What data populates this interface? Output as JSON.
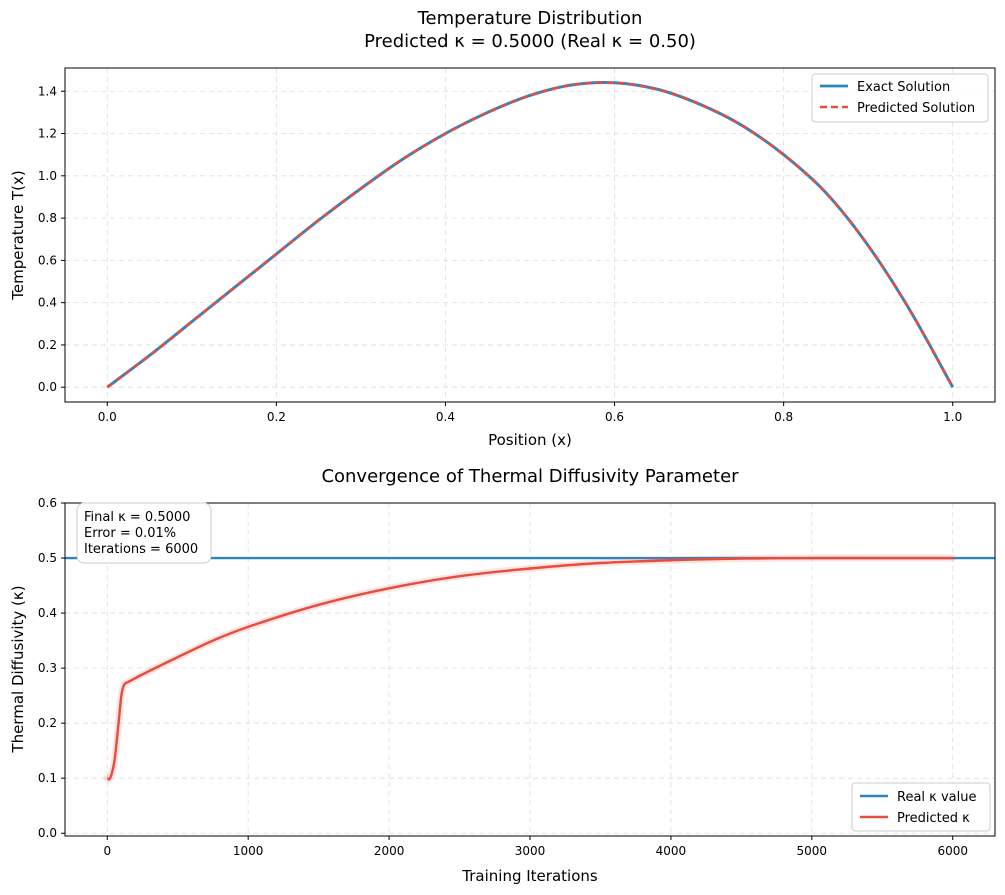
{
  "colors": {
    "exact": "#2e86c1",
    "predicted": "#e74c3c",
    "grid": "#dddddd",
    "axis": "#000000"
  },
  "chart_data": [
    {
      "type": "line",
      "title": "Temperature Distribution\nPredicted κ = 0.5000 (Real κ = 0.50)",
      "title_lines": [
        "Temperature Distribution",
        "Predicted κ = 0.5000 (Real κ = 0.50)"
      ],
      "xlabel": "Position (x)",
      "ylabel": "Temperature T(x)",
      "xlim": [
        -0.05,
        1.05
      ],
      "ylim": [
        -0.07,
        1.51
      ],
      "xticks": [
        0.0,
        0.2,
        0.4,
        0.6,
        0.8,
        1.0
      ],
      "xtick_labels": [
        "0.0",
        "0.2",
        "0.4",
        "0.6",
        "0.8",
        "1.0"
      ],
      "yticks": [
        0.0,
        0.2,
        0.4,
        0.6,
        0.8,
        1.0,
        1.2,
        1.4
      ],
      "ytick_labels": [
        "0.0",
        "0.2",
        "0.4",
        "0.6",
        "0.8",
        "1.0",
        "1.2",
        "1.4"
      ],
      "grid": true,
      "legend": "upper right",
      "series": [
        {
          "name": "Exact Solution",
          "style": "solid",
          "color": "#2e86c1",
          "x": [
            0.0,
            0.05,
            0.1,
            0.15,
            0.2,
            0.25,
            0.3,
            0.35,
            0.4,
            0.45,
            0.5,
            0.55,
            0.6,
            0.65,
            0.7,
            0.75,
            0.8,
            0.85,
            0.9,
            0.95,
            1.0
          ],
          "y": [
            0.0,
            0.15,
            0.31,
            0.47,
            0.63,
            0.79,
            0.94,
            1.08,
            1.2,
            1.3,
            1.38,
            1.43,
            1.44,
            1.41,
            1.34,
            1.24,
            1.1,
            0.92,
            0.67,
            0.36,
            0.0
          ]
        },
        {
          "name": "Predicted Solution",
          "style": "dashed",
          "color": "#e74c3c",
          "x": [
            0.0,
            0.05,
            0.1,
            0.15,
            0.2,
            0.25,
            0.3,
            0.35,
            0.4,
            0.45,
            0.5,
            0.55,
            0.6,
            0.65,
            0.7,
            0.75,
            0.8,
            0.85,
            0.9,
            0.95,
            1.0
          ],
          "y": [
            0.0,
            0.15,
            0.31,
            0.47,
            0.63,
            0.79,
            0.94,
            1.08,
            1.2,
            1.3,
            1.38,
            1.43,
            1.44,
            1.41,
            1.34,
            1.24,
            1.1,
            0.92,
            0.67,
            0.36,
            0.0
          ]
        }
      ]
    },
    {
      "type": "line",
      "title": "Convergence of Thermal Diffusivity Parameter",
      "xlabel": "Training Iterations",
      "ylabel": "Thermal Diffusivity (κ)",
      "xlim": [
        -300,
        6300
      ],
      "ylim": [
        -0.005,
        0.6
      ],
      "xticks": [
        0,
        1000,
        2000,
        3000,
        4000,
        5000,
        6000
      ],
      "xtick_labels": [
        "0",
        "1000",
        "2000",
        "3000",
        "4000",
        "5000",
        "6000"
      ],
      "yticks": [
        0.0,
        0.1,
        0.2,
        0.3,
        0.4,
        0.5,
        0.6
      ],
      "ytick_labels": [
        "0.0",
        "0.1",
        "0.2",
        "0.3",
        "0.4",
        "0.5",
        "0.6"
      ],
      "grid": true,
      "legend": "lower right",
      "annotation": [
        "Final κ = 0.5000",
        "Error = 0.01%",
        "Iterations = 6000"
      ],
      "series": [
        {
          "name": "Real κ value",
          "style": "hline",
          "color": "#2e86c1",
          "y": 0.5
        },
        {
          "name": "Predicted κ",
          "style": "solid",
          "color": "#e74c3c",
          "x": [
            0,
            20,
            50,
            80,
            100,
            120,
            150,
            200,
            300,
            500,
            750,
            1000,
            1500,
            2000,
            2500,
            3000,
            3500,
            4000,
            4500,
            5000,
            5500,
            6000
          ],
          "y": [
            0.1,
            0.1,
            0.13,
            0.2,
            0.25,
            0.27,
            0.275,
            0.282,
            0.295,
            0.32,
            0.35,
            0.375,
            0.415,
            0.445,
            0.467,
            0.481,
            0.491,
            0.496,
            0.499,
            0.5,
            0.5,
            0.5
          ]
        }
      ]
    }
  ]
}
